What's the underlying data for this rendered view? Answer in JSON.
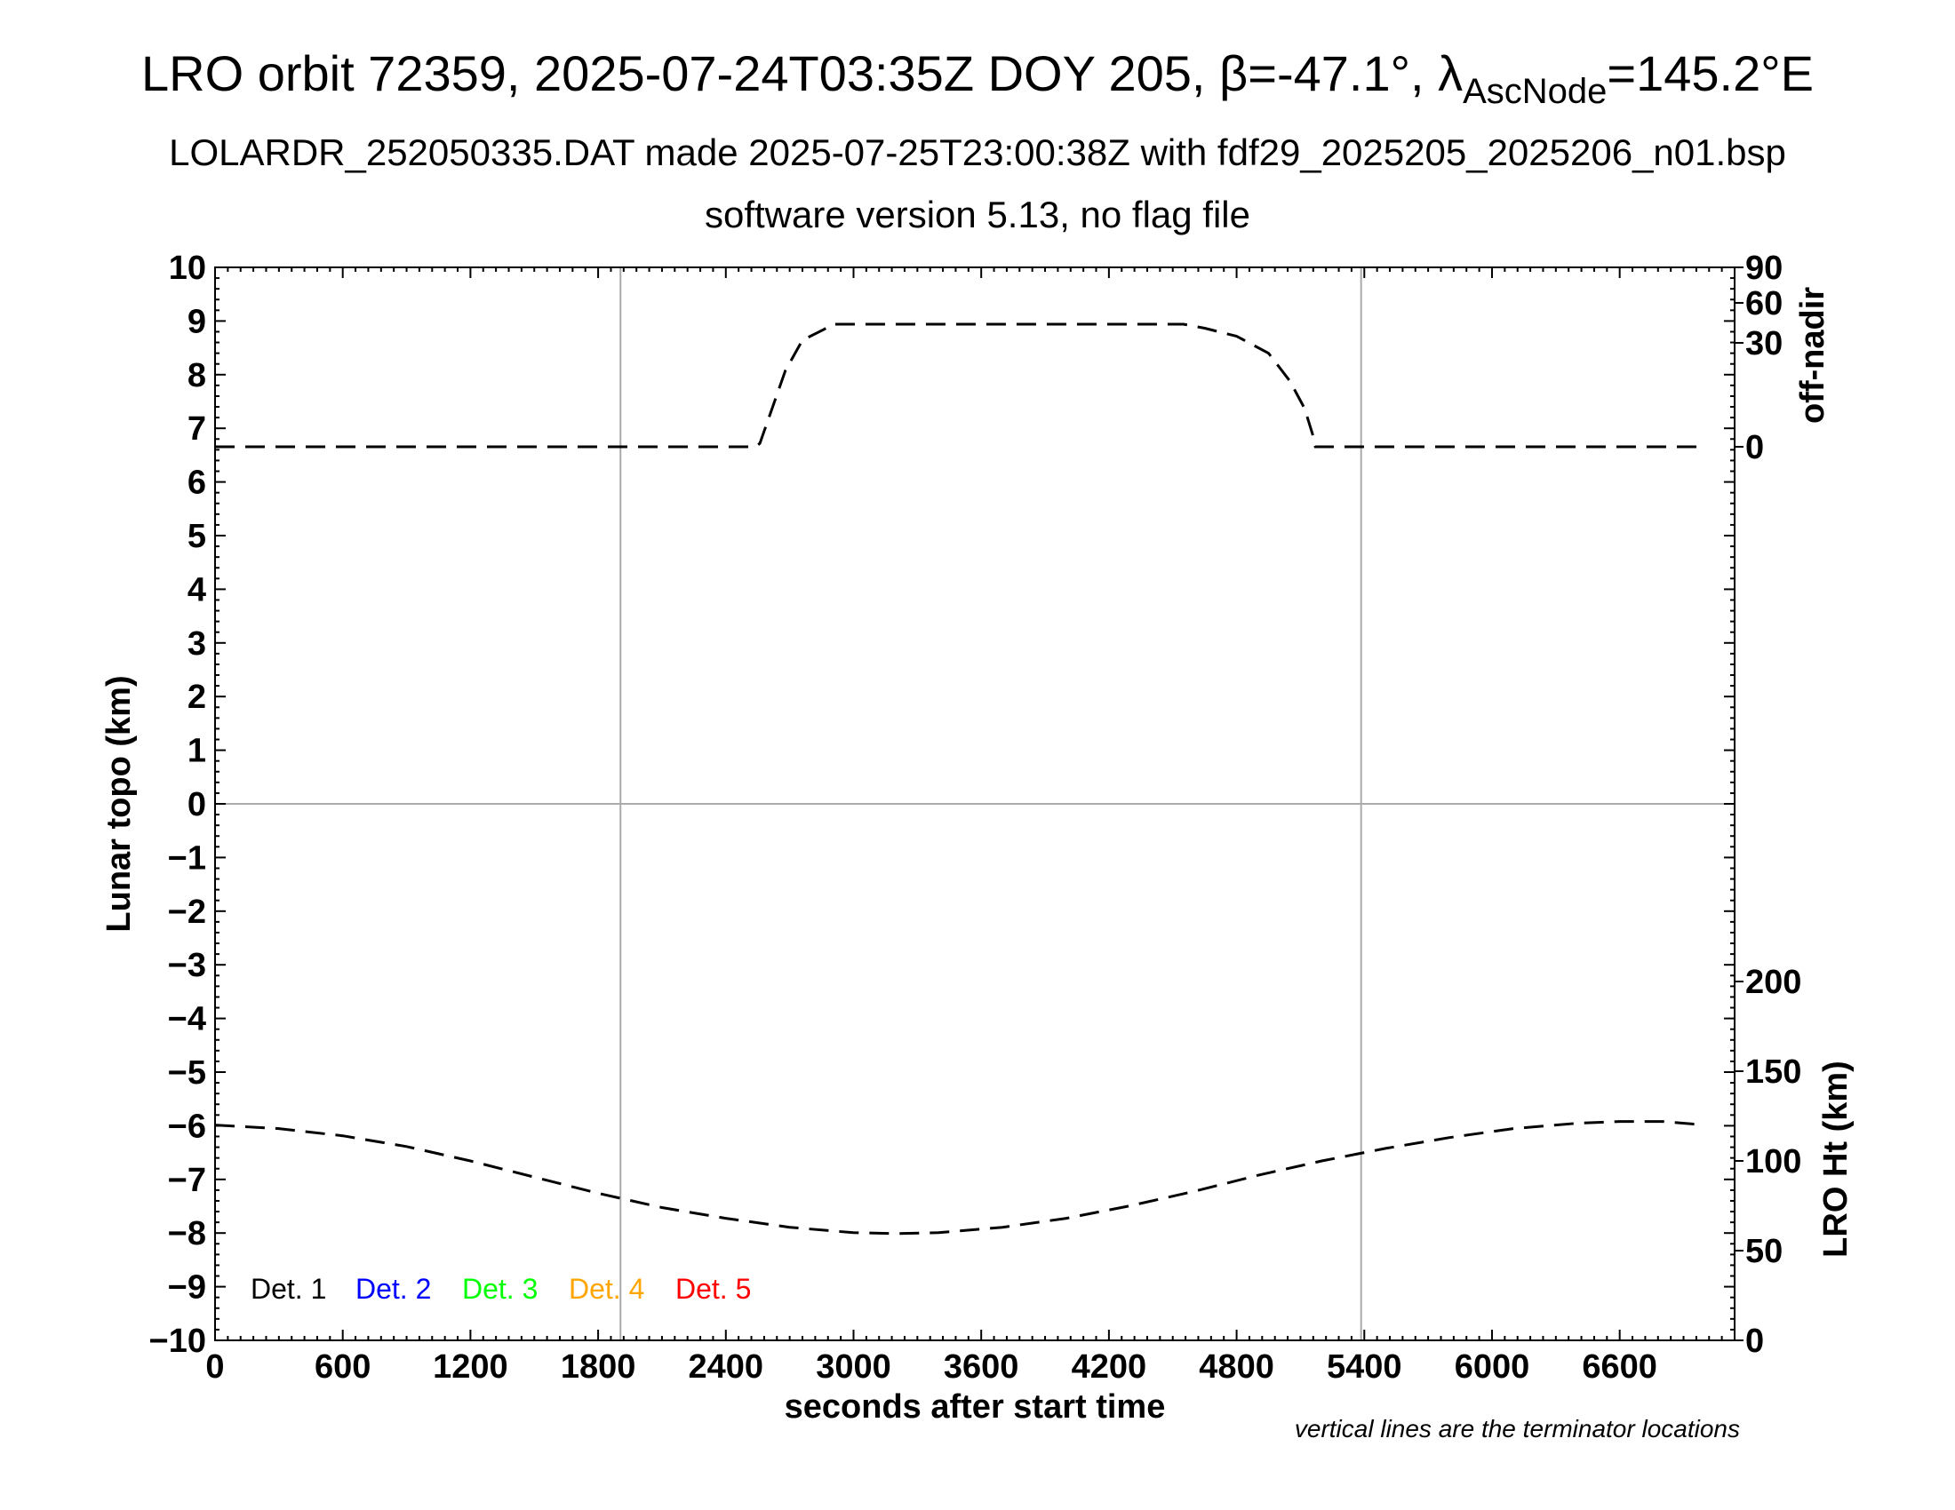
{
  "header": {
    "title_main": "LRO orbit 72359, 2025-07-24T03:35Z DOY 205, β=-47.1°, λ",
    "title_sub": "AscNode",
    "title_tail": "=145.2°E",
    "subtitle1": "LOLARDR_252050335.DAT made 2025-07-25T23:00:38Z with fdf29_2025205_2025206_n01.bsp",
    "subtitle2": "software version 5.13, no flag file"
  },
  "chart_data": {
    "type": "line",
    "xlabel": "seconds after start time",
    "ylabel": "Lunar topo (km)",
    "y2_top_label": "off-nadir",
    "y2_bottom_label": "LRO Ht (km)",
    "xlim": [
      0,
      7140
    ],
    "ylim": [
      -10,
      10
    ],
    "x_ticks": [
      0,
      600,
      1200,
      1800,
      2400,
      3000,
      3600,
      4200,
      4800,
      5400,
      6000,
      6600
    ],
    "y_ticks": [
      -10,
      -9,
      -8,
      -7,
      -6,
      -5,
      -4,
      -3,
      -2,
      -1,
      0,
      1,
      2,
      3,
      4,
      5,
      6,
      7,
      8,
      9,
      10
    ],
    "y_tick_labels": [
      "−10",
      "−9",
      "−8",
      "−7",
      "−6",
      "−5",
      "−4",
      "−3",
      "−2",
      "−1",
      "0",
      "1",
      "2",
      "3",
      "4",
      "5",
      "6",
      "7",
      "8",
      "9",
      "10"
    ],
    "off_nadir_ticks": [
      0,
      30,
      60,
      90
    ],
    "lro_ht_ticks": [
      0,
      50,
      100,
      150,
      200
    ],
    "grid": true,
    "terminator_x": [
      1905,
      5385
    ],
    "series": [
      {
        "axis": "off-nadir",
        "style": "dashed",
        "color": "#000000",
        "points": [
          [
            0,
            0
          ],
          [
            1000,
            0
          ],
          [
            2000,
            0
          ],
          [
            2540,
            0
          ],
          [
            2560,
            1
          ],
          [
            2600,
            8
          ],
          [
            2680,
            22
          ],
          [
            2760,
            32
          ],
          [
            2860,
            40
          ],
          [
            2900,
            44
          ],
          [
            3000,
            44
          ],
          [
            3600,
            44
          ],
          [
            4000,
            44
          ],
          [
            4550,
            44
          ],
          [
            4650,
            41
          ],
          [
            4800,
            35
          ],
          [
            4950,
            27
          ],
          [
            5050,
            19
          ],
          [
            5120,
            11
          ],
          [
            5160,
            3
          ],
          [
            5170,
            0
          ],
          [
            5600,
            0
          ],
          [
            6400,
            0
          ],
          [
            7000,
            0
          ]
        ]
      },
      {
        "axis": "lro-ht",
        "style": "dashed",
        "color": "#000000",
        "points": [
          [
            0,
            120
          ],
          [
            300,
            118
          ],
          [
            600,
            114
          ],
          [
            900,
            108
          ],
          [
            1200,
            100
          ],
          [
            1500,
            91
          ],
          [
            1800,
            82
          ],
          [
            2100,
            74
          ],
          [
            2400,
            68
          ],
          [
            2700,
            63
          ],
          [
            3000,
            60
          ],
          [
            3200,
            59.5
          ],
          [
            3400,
            60
          ],
          [
            3700,
            63
          ],
          [
            4000,
            68
          ],
          [
            4300,
            75
          ],
          [
            4600,
            83
          ],
          [
            4900,
            92
          ],
          [
            5200,
            100
          ],
          [
            5500,
            107
          ],
          [
            5800,
            113
          ],
          [
            6100,
            118
          ],
          [
            6400,
            121
          ],
          [
            6600,
            122
          ],
          [
            6800,
            122
          ],
          [
            7000,
            120
          ]
        ]
      }
    ]
  },
  "legend": {
    "items": [
      {
        "label": "Det. 1",
        "color": "#000000"
      },
      {
        "label": "Det. 2",
        "color": "#0000ff"
      },
      {
        "label": "Det. 3",
        "color": "#00ff00"
      },
      {
        "label": "Det. 4",
        "color": "#ffa500"
      },
      {
        "label": "Det. 5",
        "color": "#ff0000"
      }
    ]
  },
  "note": "vertical lines are the terminator locations"
}
